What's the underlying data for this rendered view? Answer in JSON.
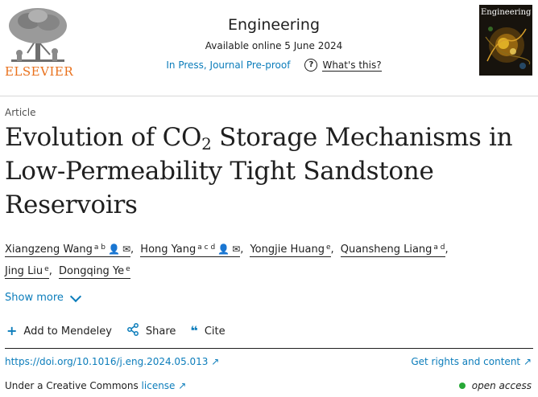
{
  "publisher": {
    "name": "ELSEVIER"
  },
  "journal": {
    "title": "Engineering",
    "available": "Available online 5 June 2024",
    "status": "In Press, Journal Pre-proof",
    "whats_this": "What's this?",
    "cover_title": "Engineering"
  },
  "article": {
    "type": "Article",
    "title_part1": "Evolution of CO",
    "title_sub": "2",
    "title_part2": " Storage Mechanisms in Low-Permeability Tight Sandstone Reservoirs"
  },
  "authors": [
    {
      "name": "Xiangzeng Wang",
      "affil": "a b"
    },
    {
      "name": "Hong Yang",
      "affil": "a c d"
    },
    {
      "name": "Yongjie Huang",
      "affil": "e"
    },
    {
      "name": "Quansheng Liang",
      "affil": "a d"
    },
    {
      "name": "Jing Liu",
      "affil": "e"
    },
    {
      "name": "Dongqing Ye",
      "affil": "e"
    }
  ],
  "show_more": "Show more",
  "actions": {
    "mendeley": "Add to Mendeley",
    "share": "Share",
    "cite": "Cite"
  },
  "links": {
    "doi": "https://doi.org/10.1016/j.eng.2024.05.013 ↗",
    "rights": "Get rights and content ↗",
    "license_prefix": "Under a Creative Commons ",
    "license_link": "license ↗",
    "open_access": "open access"
  },
  "colors": {
    "link": "#0c7dbb",
    "publisher": "#e9711c",
    "open_access": "#27a837"
  }
}
